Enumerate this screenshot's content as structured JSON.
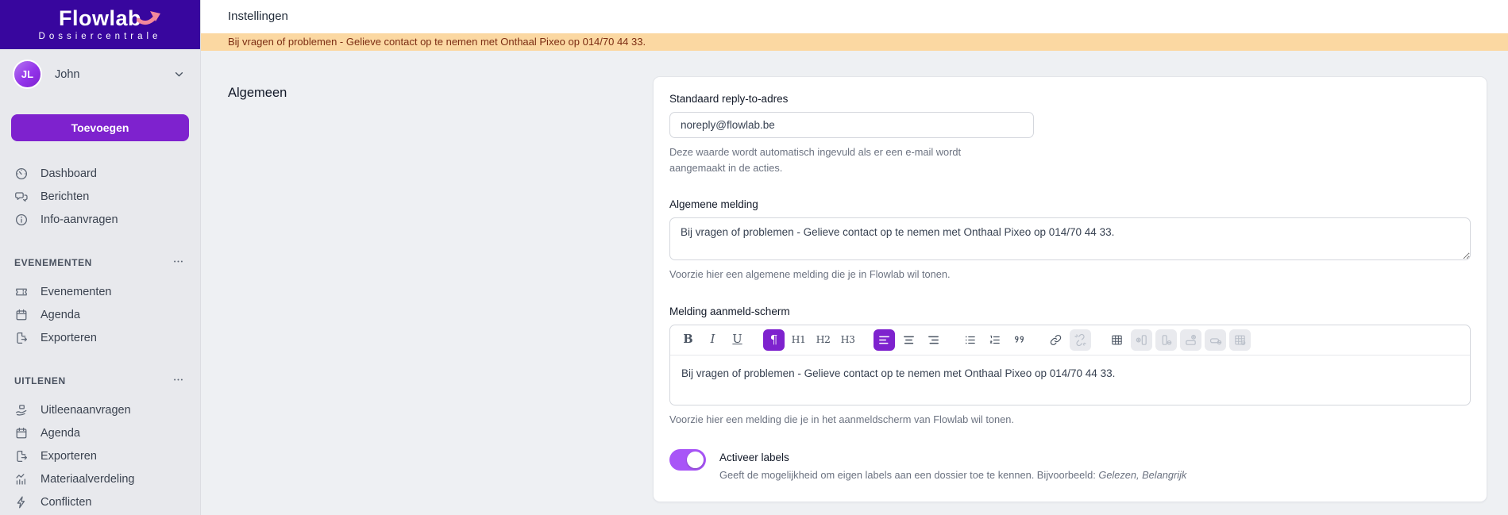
{
  "app": {
    "name": "Flowlab",
    "subtitle": "Dossiercentrale"
  },
  "colors": {
    "brand_purple": "#38069E",
    "accent_purple": "#7E22CE",
    "toggle_purple": "#A855F7",
    "banner_bg": "#FBD8A2",
    "banner_text": "#7C2D12"
  },
  "user": {
    "initials": "JL",
    "name": "John"
  },
  "sidebar": {
    "add_button_label": "Toevoegen",
    "main_items": [
      {
        "icon": "gauge-icon",
        "label": "Dashboard"
      },
      {
        "icon": "chat-bubbles-icon",
        "label": "Berichten"
      },
      {
        "icon": "info-circle-icon",
        "label": "Info-aanvragen"
      }
    ],
    "sections": [
      {
        "title": "EVENEMENTEN",
        "menu_icon": "ellipsis-icon",
        "items": [
          {
            "icon": "ticket-icon",
            "label": "Evenementen"
          },
          {
            "icon": "calendar-icon",
            "label": "Agenda"
          },
          {
            "icon": "file-export-icon",
            "label": "Exporteren"
          }
        ]
      },
      {
        "title": "UITLENEN",
        "menu_icon": "ellipsis-icon",
        "items": [
          {
            "icon": "hand-box-icon",
            "label": "Uitleenaanvragen"
          },
          {
            "icon": "calendar-icon",
            "label": "Agenda"
          },
          {
            "icon": "file-export-icon",
            "label": "Exporteren"
          },
          {
            "icon": "chart-icon",
            "label": "Materiaalverdeling"
          },
          {
            "icon": "bolt-icon",
            "label": "Conflicten"
          }
        ]
      }
    ]
  },
  "header": {
    "title": "Instellingen"
  },
  "banner": {
    "text": "Bij vragen of problemen - Gelieve contact op te nemen met Onthaal Pixeo op 014/70 44 33."
  },
  "main": {
    "section_title": "Algemeen",
    "fields": {
      "reply_to": {
        "label": "Standaard reply-to-adres",
        "value": "noreply@flowlab.be",
        "help": "Deze waarde wordt automatisch ingevuld als er een e-mail wordt aangemaakt in de acties."
      },
      "general_message": {
        "label": "Algemene melding",
        "value": "Bij vragen of problemen - Gelieve contact op te nemen met Onthaal Pixeo op 014/70 44 33.",
        "help": "Voorzie hier een algemene melding die je in Flowlab wil tonen."
      },
      "login_message": {
        "label": "Melding aanmeld-scherm",
        "value": "Bij vragen of problemen - Gelieve contact op te nemen met Onthaal Pixeo op 014/70 44 33.",
        "help": "Voorzie hier een melding die je in het aanmeldscherm van Flowlab wil tonen."
      },
      "labels_toggle": {
        "label": "Activeer labels",
        "enabled": true,
        "help_prefix": "Geeft de mogelijkheid om eigen labels aan een dossier toe te kennen. Bijvoorbeeld: ",
        "help_example": "Gelezen, Belangrijk"
      }
    },
    "editor_toolbar": [
      {
        "name": "bold-button",
        "icon": "bold-icon",
        "glyph": "B",
        "state": "normal"
      },
      {
        "name": "italic-button",
        "icon": "italic-icon",
        "glyph": "I",
        "state": "normal"
      },
      {
        "name": "underline-button",
        "icon": "underline-icon",
        "glyph": "U",
        "state": "normal"
      },
      {
        "name": "paragraph-button",
        "icon": "pilcrow-icon",
        "glyph": "¶",
        "state": "active",
        "group": true
      },
      {
        "name": "heading1-button",
        "icon": "h1-icon",
        "glyph": "H1",
        "state": "normal"
      },
      {
        "name": "heading2-button",
        "icon": "h2-icon",
        "glyph": "H2",
        "state": "normal"
      },
      {
        "name": "heading3-button",
        "icon": "h3-icon",
        "glyph": "H3",
        "state": "normal"
      },
      {
        "name": "align-left-button",
        "icon": "align-left-icon",
        "state": "active",
        "group": true
      },
      {
        "name": "align-center-button",
        "icon": "align-center-icon",
        "state": "normal"
      },
      {
        "name": "align-right-button",
        "icon": "align-right-icon",
        "state": "normal"
      },
      {
        "name": "bullet-list-button",
        "icon": "bullet-list-icon",
        "state": "normal",
        "group": true
      },
      {
        "name": "ordered-list-button",
        "icon": "ordered-list-icon",
        "state": "normal"
      },
      {
        "name": "blockquote-button",
        "icon": "blockquote-icon",
        "state": "normal"
      },
      {
        "name": "link-button",
        "icon": "link-icon",
        "state": "normal",
        "group": true
      },
      {
        "name": "unlink-button",
        "icon": "unlink-icon",
        "state": "disabled"
      },
      {
        "name": "insert-table-button",
        "icon": "table-icon",
        "state": "normal",
        "group": true
      },
      {
        "name": "add-column-button",
        "icon": "add-column-icon",
        "state": "disabled"
      },
      {
        "name": "delete-column-button",
        "icon": "delete-column-icon",
        "state": "disabled"
      },
      {
        "name": "add-row-button",
        "icon": "add-row-icon",
        "state": "disabled"
      },
      {
        "name": "delete-row-button",
        "icon": "delete-row-icon",
        "state": "disabled"
      },
      {
        "name": "delete-table-button",
        "icon": "delete-table-icon",
        "state": "disabled"
      }
    ]
  }
}
